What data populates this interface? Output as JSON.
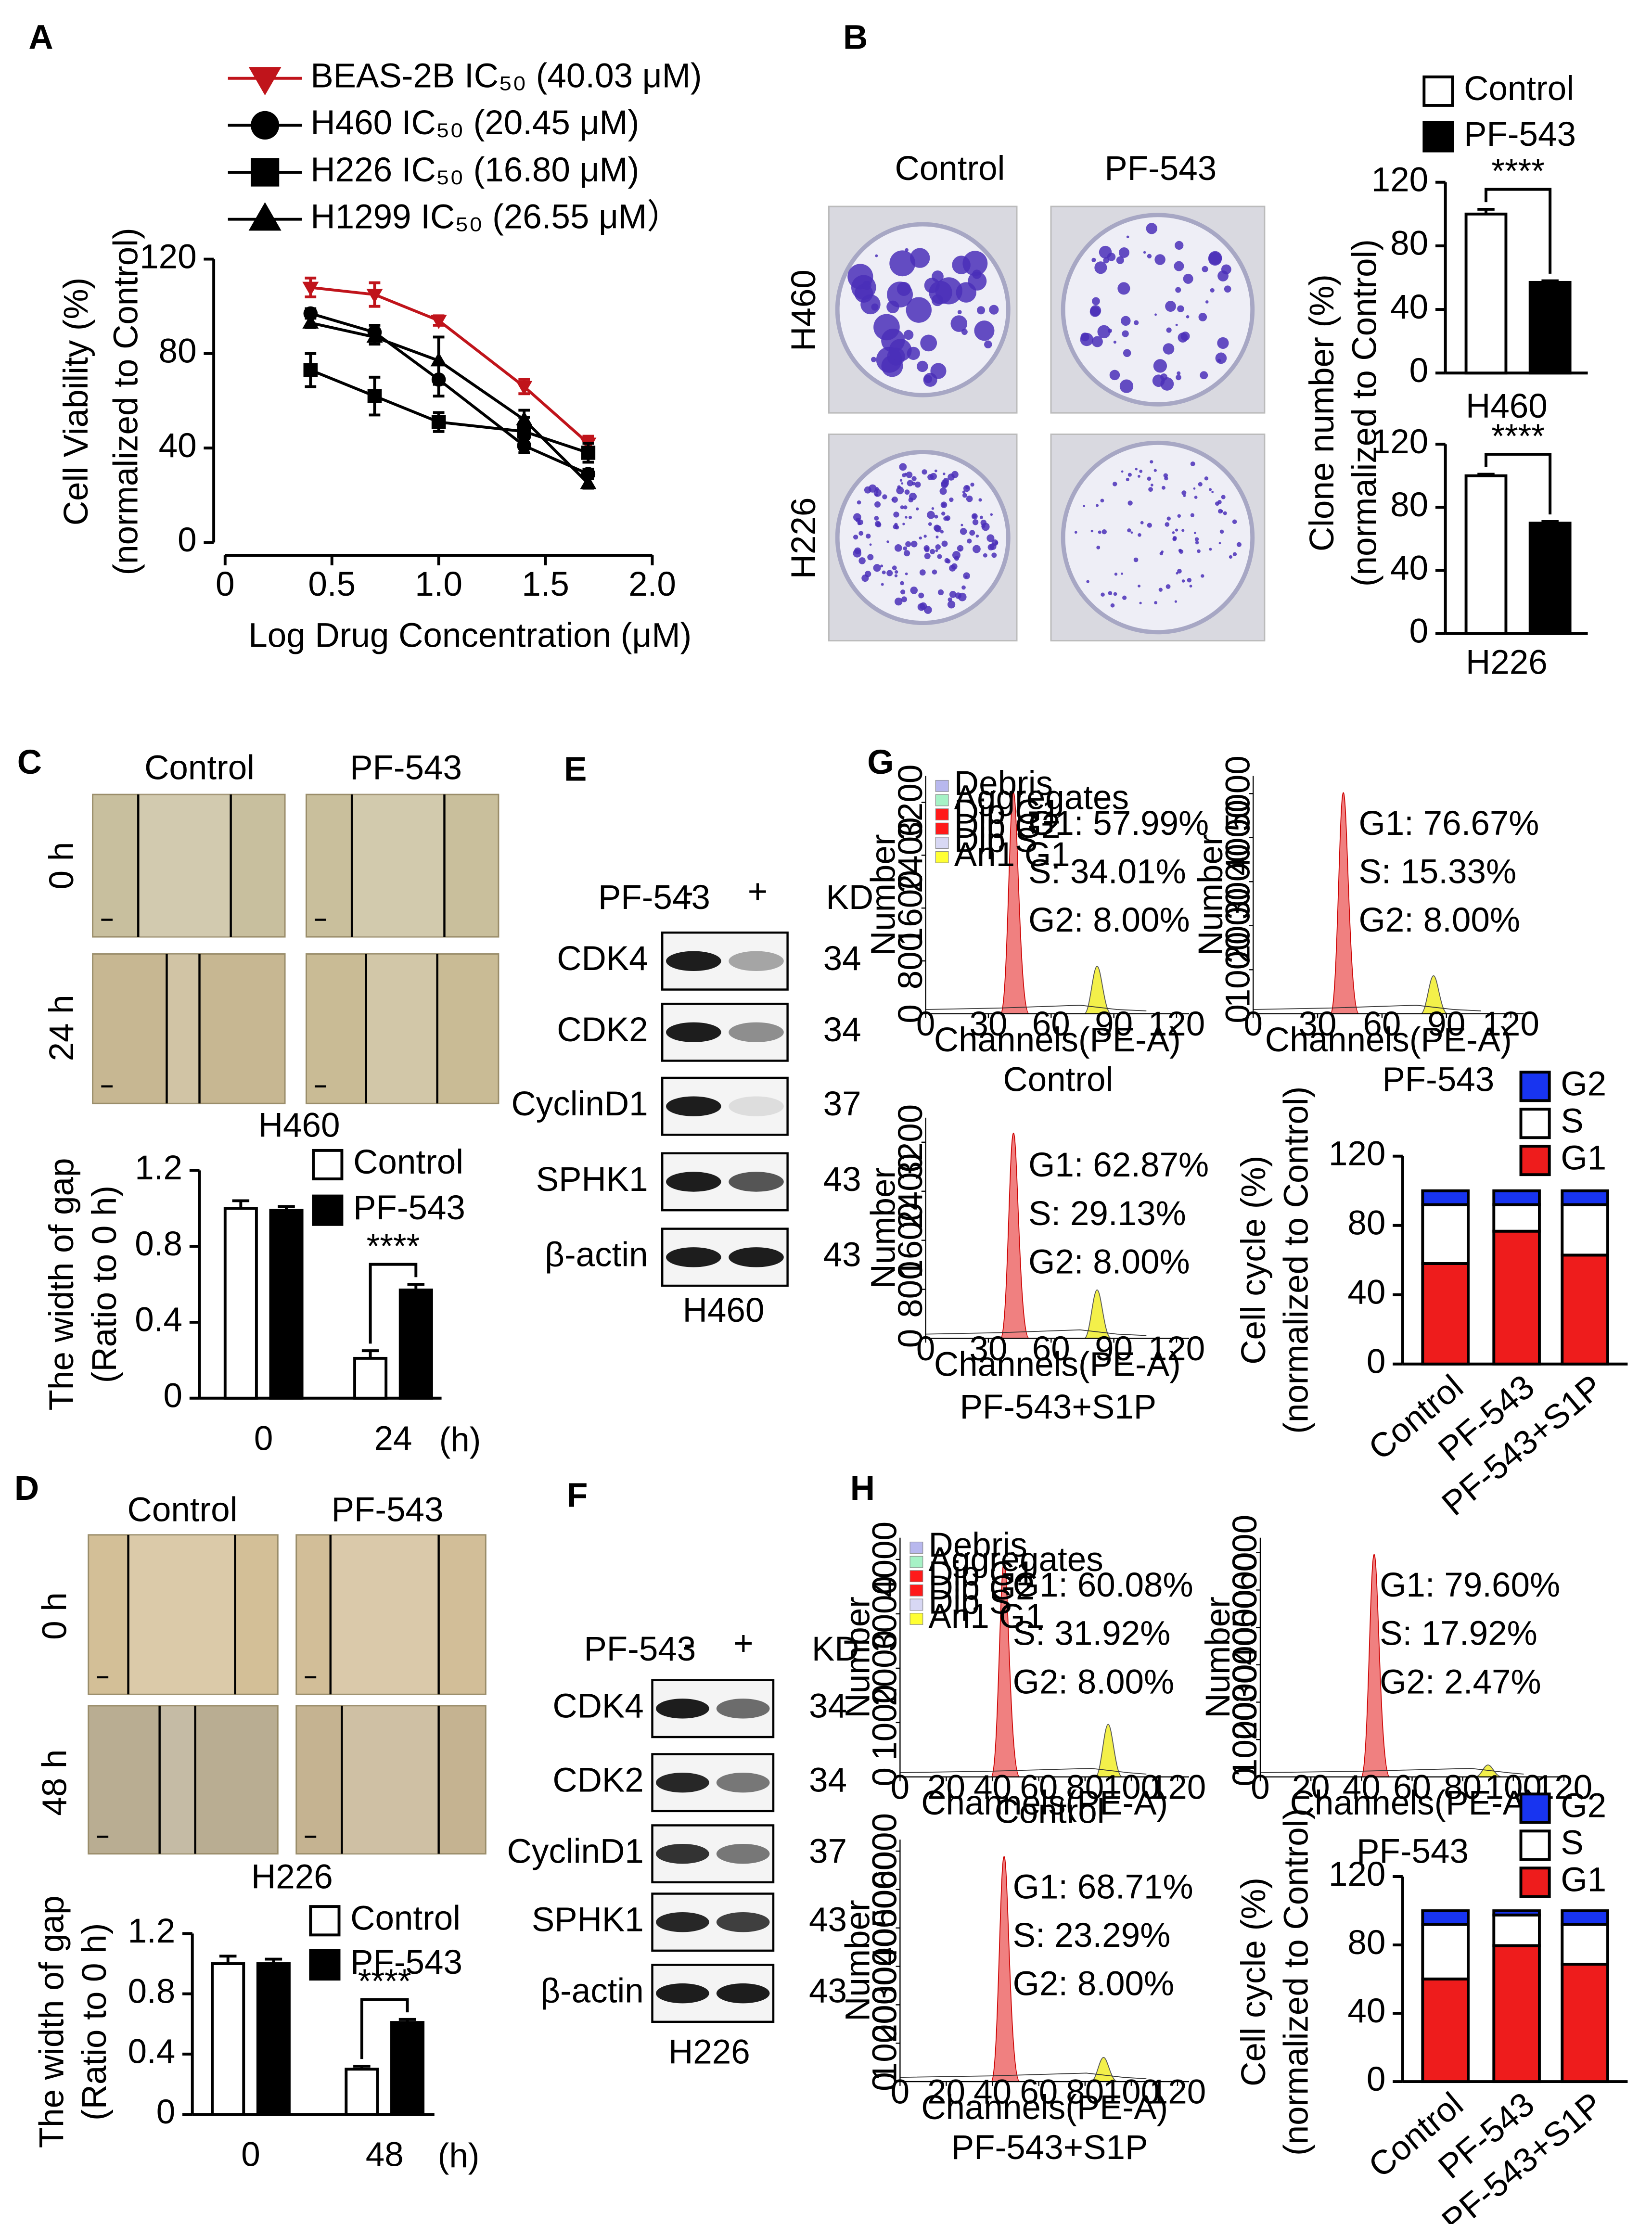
{
  "panels": [
    "A",
    "B",
    "C",
    "D",
    "E",
    "F",
    "G",
    "H"
  ],
  "images": {
    "B": {
      "columns": [
        "Control",
        "PF-543"
      ],
      "rows": [
        "H460",
        "H226"
      ]
    },
    "C": {
      "columns": [
        "Control",
        "PF-543"
      ],
      "rows": [
        "0 h",
        "24 h"
      ],
      "caption": "H460"
    },
    "D": {
      "columns": [
        "Control",
        "PF-543"
      ],
      "rows": [
        "0 h",
        "48 h"
      ],
      "caption": "H226"
    }
  },
  "blots": [
    {
      "treatment": "PF-543",
      "lanes": [
        "-",
        "+"
      ],
      "unit": "KD",
      "proteins": [
        "CDK4",
        "CDK2",
        "CyclinD1",
        "SPHK1",
        "β-actin"
      ],
      "kd": [
        34,
        34,
        37,
        43,
        43
      ],
      "caption": "H460"
    },
    {
      "treatment": "PF-543",
      "lanes": [
        "-",
        "+"
      ],
      "unit": "KD",
      "proteins": [
        "CDK4",
        "CDK2",
        "CyclinD1",
        "SPHK1",
        "β-actin"
      ],
      "kd": [
        34,
        34,
        37,
        43,
        43
      ],
      "caption": "H226"
    }
  ],
  "flow": [
    {
      "legend": [
        {
          "name": "Debris",
          "color": "#b8b8ee"
        },
        {
          "name": "Aggregates",
          "color": "#a6f2c6"
        },
        {
          "name": "Dip G1",
          "color": "#ff1a1a"
        },
        {
          "name": "Dip G2",
          "color": "#ff1a1a"
        },
        {
          "name": "Dip S",
          "color": "#d8d8f4"
        },
        {
          "name": "An1 G1",
          "color": "#ffff33"
        }
      ],
      "annotations": [
        "G1: 57.99%",
        "S: 34.01%",
        "G2: 8.00%"
      ],
      "caption": "Control",
      "xlabel": "Channels(PE-A)",
      "ylabel": "Number",
      "xlim": [
        0,
        126
      ],
      "xticks": [
        0,
        30,
        60,
        90,
        120
      ],
      "ylim": [
        0,
        3600
      ],
      "yticks": [
        0,
        800,
        1600,
        2400,
        3200
      ]
    },
    {
      "annotations": [
        "G1: 76.67%",
        "S: 15.33%",
        "G2: 8.00%"
      ],
      "caption": "PF-543",
      "xlabel": "Channels(PE-A)",
      "ylabel": "Number",
      "xlim": [
        0,
        126
      ],
      "xticks": [
        0,
        30,
        60,
        90,
        120
      ],
      "ylim": [
        0,
        5400
      ],
      "yticks": [
        0,
        1000,
        2000,
        3000,
        4000,
        5000
      ]
    },
    {
      "annotations": [
        "G1: 62.87%",
        "S: 29.13%",
        "G2: 8.00%"
      ],
      "caption": "PF-543+S1P",
      "xlabel": "Channels(PE-A)",
      "ylabel": "Number",
      "xlim": [
        0,
        126
      ],
      "xticks": [
        0,
        30,
        60,
        90,
        120
      ],
      "ylim": [
        0,
        3600
      ],
      "yticks": [
        0,
        800,
        1600,
        2400,
        3200
      ]
    },
    {
      "legend": [
        {
          "name": "Debris",
          "color": "#b8b8ee"
        },
        {
          "name": "Aggregates",
          "color": "#a6f2c6"
        },
        {
          "name": "Dip G1",
          "color": "#ff1a1a"
        },
        {
          "name": "Dip G2",
          "color": "#ff1a1a"
        },
        {
          "name": "Dip S",
          "color": "#d8d8f4"
        },
        {
          "name": "An1 G1",
          "color": "#ffff33"
        }
      ],
      "annotations": [
        "G1: 60.08%",
        "S: 31.92%",
        "G2: 8.00%"
      ],
      "caption": "Control",
      "xlabel": "Channels(PE-A)",
      "ylabel": "Number",
      "xlim": [
        0,
        125
      ],
      "xticks": [
        0,
        20,
        40,
        60,
        80,
        100,
        120
      ],
      "ylim": [
        0,
        4400
      ],
      "yticks": [
        0,
        1000,
        2000,
        3000,
        4000
      ]
    },
    {
      "annotations": [
        "G1: 79.60%",
        "S: 17.92%",
        "G2: 2.47%"
      ],
      "caption": "PF-543",
      "xlabel": "Channels(PE-A)",
      "ylabel": "Number",
      "xlim": [
        0,
        121
      ],
      "xticks": [
        0,
        20,
        40,
        60,
        80,
        100,
        120
      ],
      "ylim": [
        0,
        6400
      ],
      "yticks": [
        0,
        1000,
        2000,
        3000,
        4000,
        5000,
        6000
      ]
    },
    {
      "annotations": [
        "G1: 68.71%",
        "S: 23.29%",
        "G2: 8.00%"
      ],
      "caption": "PF-543+S1P",
      "xlabel": "Channels(PE-A)",
      "ylabel": "Number",
      "xlim": [
        0,
        125
      ],
      "xticks": [
        0,
        20,
        40,
        60,
        80,
        100,
        120
      ],
      "ylim": [
        0,
        6300
      ],
      "yticks": [
        0,
        1000,
        2000,
        3000,
        4000,
        5000,
        6000
      ]
    }
  ],
  "chart_data": [
    {
      "type": "line",
      "xlabel": "Log Drug Concentration (μM)",
      "ylabel": [
        "Cell Viability (%)",
        "(normalized to Control)"
      ],
      "x": [
        0.4,
        0.7,
        1.0,
        1.4,
        1.7
      ],
      "xlim": [
        0,
        2
      ],
      "xticks": [
        0,
        0.5,
        {
          "value": 1,
          "label": "1.0"
        },
        1.5,
        {
          "value": 2,
          "label": "2.0"
        }
      ],
      "ylim": [
        0,
        120
      ],
      "yticks": [
        0,
        40,
        80,
        120
      ],
      "series": [
        {
          "name": "BEAS-2B IC₅₀  (40.03 μM)",
          "color": "#c0141b",
          "marker": "triangle-down",
          "values": [
            108,
            105,
            94,
            66,
            42
          ],
          "errors": [
            4,
            5,
            2,
            3,
            3
          ]
        },
        {
          "name": "H460 IC₅₀  (20.45 μM)",
          "color": "#000000",
          "marker": "circle",
          "values": [
            97,
            89,
            69,
            41,
            29
          ],
          "errors": [
            2,
            3,
            7,
            3,
            2
          ]
        },
        {
          "name": "H226 IC₅₀ (16.80 μM)",
          "color": "#000000",
          "marker": "square",
          "values": [
            73,
            62,
            51,
            47,
            38
          ],
          "errors": [
            7,
            8,
            4,
            6,
            4
          ]
        },
        {
          "name": "H1299 IC₅₀ (26.55 μM）",
          "color": "#000000",
          "marker": "triangle",
          "values": [
            93,
            87,
            77,
            52,
            25
          ],
          "errors": [
            2,
            3,
            10,
            4,
            2
          ]
        }
      ]
    },
    {
      "type": "bar",
      "legend": true,
      "xlabel": "H460",
      "ylabel": [
        "Clone number (%)",
        "(normalized to Control)"
      ],
      "annotation": "****",
      "ylim": [
        0,
        120
      ],
      "yticks": [
        0,
        40,
        80,
        120
      ],
      "series": [
        {
          "name": "Control",
          "color": "#ffffff",
          "values": [
            100
          ],
          "errors": [
            3
          ]
        },
        {
          "name": "PF-543",
          "color": "#000000",
          "values": [
            57
          ],
          "errors": [
            1
          ]
        }
      ]
    },
    {
      "type": "bar",
      "xlabel": "H226",
      "annotation": "****",
      "ylim": [
        0,
        120
      ],
      "yticks": [
        0,
        40,
        80,
        120
      ],
      "series": [
        {
          "color": "#ffffff",
          "values": [
            100
          ],
          "errors": [
            1
          ]
        },
        {
          "color": "#000000",
          "values": [
            70
          ],
          "errors": [
            1
          ]
        }
      ]
    },
    {
      "type": "bar",
      "legend": true,
      "categories": [
        "0",
        "24"
      ],
      "xunit": "(h)",
      "ylabel": [
        "The width of gap",
        "(Ratio to 0 h)"
      ],
      "annotation": "****",
      "ylim": [
        0,
        1.2
      ],
      "yticks": [
        0,
        0.4,
        0.8,
        1.2
      ],
      "series": [
        {
          "name": "Control",
          "color": "#ffffff",
          "values": [
            1.0,
            0.21
          ],
          "errors": [
            0.04,
            0.04
          ]
        },
        {
          "name": "PF-543",
          "color": "#000000",
          "values": [
            0.99,
            0.57
          ],
          "errors": [
            0.02,
            0.03
          ]
        }
      ]
    },
    {
      "type": "bar",
      "legend": true,
      "categories": [
        "0",
        "48"
      ],
      "xunit": "(h)",
      "ylabel": [
        "The width of gap",
        "(Ratio to 0 h)"
      ],
      "annotation": "****",
      "ylim": [
        0,
        1.2
      ],
      "yticks": [
        0,
        0.4,
        0.8,
        1.2
      ],
      "series": [
        {
          "name": "Control",
          "color": "#ffffff",
          "values": [
            1.0,
            0.3
          ],
          "errors": [
            0.05,
            0.02
          ]
        },
        {
          "name": "PF-543",
          "color": "#000000",
          "values": [
            1.0,
            0.61
          ],
          "errors": [
            0.03,
            0.02
          ]
        }
      ]
    },
    {
      "type": "stacked_bar",
      "categories": [
        "Control",
        "PF-543",
        "PF-543+S1P"
      ],
      "ylabel": [
        "Cell cycle (%)",
        "(normalized to Control)"
      ],
      "ylim": [
        0,
        120
      ],
      "yticks": [
        0,
        40,
        80,
        120
      ],
      "series": [
        {
          "name": "G1",
          "color": "#ee1c1c",
          "values": [
            57.99,
            76.67,
            62.87
          ]
        },
        {
          "name": "S",
          "color": "#ffffff",
          "values": [
            34.01,
            15.33,
            29.13
          ]
        },
        {
          "name": "G2",
          "color": "#1834f0",
          "values": [
            8.0,
            8.0,
            8.0
          ]
        }
      ]
    },
    {
      "type": "stacked_bar",
      "categories": [
        "Control",
        "PF-543",
        "PF-543+S1P"
      ],
      "ylabel": [
        "Cell cycle (%)",
        "(normalized to Control)"
      ],
      "ylim": [
        0,
        120
      ],
      "yticks": [
        0,
        40,
        80,
        120
      ],
      "series": [
        {
          "name": "G1",
          "color": "#ee1c1c",
          "values": [
            60.08,
            79.6,
            68.71
          ]
        },
        {
          "name": "S",
          "color": "#ffffff",
          "values": [
            31.92,
            17.92,
            23.29
          ]
        },
        {
          "name": "G2",
          "color": "#1834f0",
          "values": [
            8.0,
            2.47,
            8.0
          ]
        }
      ]
    }
  ]
}
